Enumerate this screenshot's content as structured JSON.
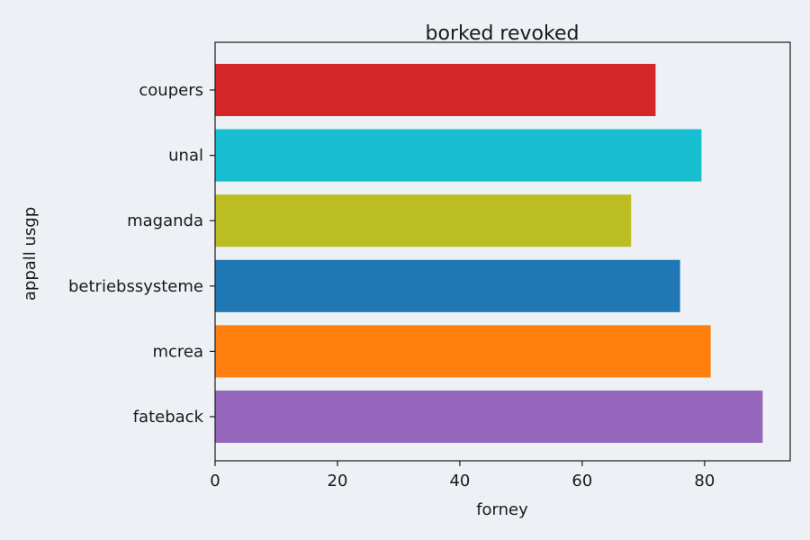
{
  "chart_data": {
    "type": "bar",
    "orientation": "horizontal",
    "title": "borked revoked",
    "xlabel": "forney",
    "ylabel": "appall usgp",
    "categories": [
      "coupers",
      "unal",
      "maganda",
      "betriebssysteme",
      "mcrea",
      "fateback"
    ],
    "values": [
      72,
      79.5,
      68,
      76,
      81,
      89.5
    ],
    "colors": [
      "#d62728",
      "#17becf",
      "#bcbd22",
      "#1f77b4",
      "#ff7f0e",
      "#9467bd"
    ],
    "xlim": [
      0,
      94
    ],
    "xticks": [
      0,
      20,
      40,
      60,
      80
    ],
    "grid": false,
    "legend": "none"
  },
  "style": {
    "background": "#edf0f5",
    "plot_background": "#edf0f5",
    "axis_color": "#1a1a1a"
  }
}
